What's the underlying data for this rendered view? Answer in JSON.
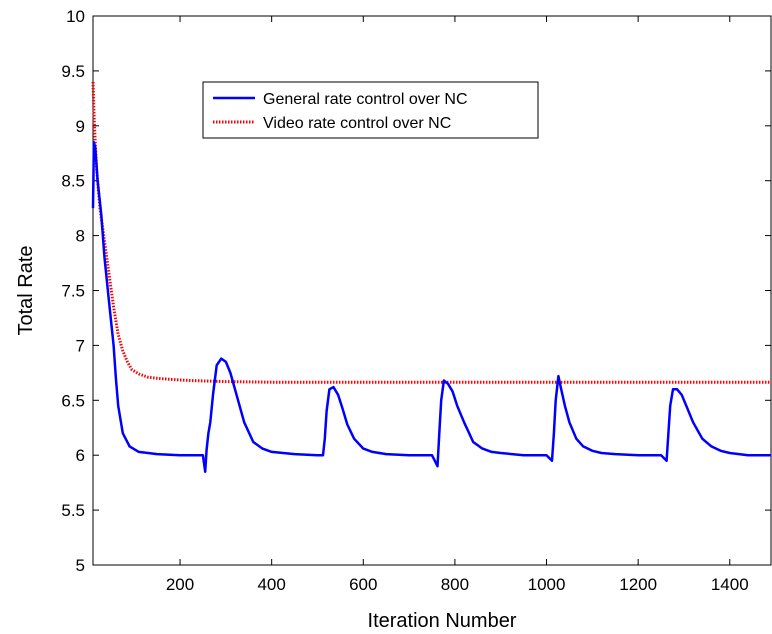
{
  "chart_data": {
    "type": "line",
    "xlabel": "Iteration Number",
    "ylabel": "Total Rate",
    "xlim": [
      10,
      1490
    ],
    "ylim": [
      5,
      10
    ],
    "xticks": [
      200,
      400,
      600,
      800,
      1000,
      1200,
      1400
    ],
    "yticks": [
      5,
      5.5,
      6,
      6.5,
      7,
      7.5,
      8,
      8.5,
      9,
      9.5,
      10
    ],
    "ytick_labels": [
      "5",
      "5.5",
      "6",
      "6.5",
      "7",
      "7.5",
      "8",
      "8.5",
      "9",
      "9.5",
      "10"
    ],
    "grid": false,
    "legend_position": "upper-center",
    "series": [
      {
        "name": "General rate control over NC",
        "color": "#0000ff",
        "style": "solid",
        "x": [
          10,
          12,
          15,
          20,
          28,
          35,
          45,
          55,
          60,
          65,
          75,
          90,
          110,
          130,
          150,
          200,
          250,
          255,
          258,
          262,
          266,
          272,
          280,
          290,
          300,
          310,
          320,
          330,
          340,
          360,
          380,
          400,
          450,
          500,
          512,
          516,
          520,
          526,
          535,
          545,
          555,
          565,
          580,
          600,
          620,
          650,
          700,
          750,
          762,
          766,
          770,
          776,
          785,
          795,
          805,
          820,
          840,
          860,
          880,
          900,
          950,
          1000,
          1012,
          1016,
          1020,
          1026,
          1032,
          1040,
          1050,
          1065,
          1080,
          1100,
          1120,
          1150,
          1200,
          1250,
          1262,
          1266,
          1270,
          1276,
          1285,
          1295,
          1305,
          1320,
          1340,
          1360,
          1380,
          1400,
          1440,
          1490
        ],
        "y": [
          8.25,
          8.85,
          8.8,
          8.5,
          8.2,
          7.8,
          7.4,
          7.0,
          6.7,
          6.45,
          6.2,
          6.08,
          6.03,
          6.02,
          6.01,
          6.0,
          6.0,
          5.85,
          6.05,
          6.2,
          6.3,
          6.55,
          6.82,
          6.88,
          6.85,
          6.75,
          6.6,
          6.45,
          6.3,
          6.12,
          6.06,
          6.03,
          6.01,
          6.0,
          6.0,
          6.15,
          6.4,
          6.6,
          6.62,
          6.55,
          6.42,
          6.28,
          6.15,
          6.06,
          6.03,
          6.01,
          6.0,
          6.0,
          5.9,
          6.2,
          6.5,
          6.68,
          6.65,
          6.58,
          6.45,
          6.3,
          6.12,
          6.06,
          6.03,
          6.02,
          6.0,
          6.0,
          5.95,
          6.2,
          6.5,
          6.72,
          6.6,
          6.45,
          6.3,
          6.15,
          6.08,
          6.04,
          6.02,
          6.01,
          6.0,
          6.0,
          5.95,
          6.2,
          6.45,
          6.6,
          6.6,
          6.55,
          6.45,
          6.3,
          6.15,
          6.08,
          6.04,
          6.02,
          6.0,
          6.0
        ]
      },
      {
        "name": "Video rate control over NC",
        "color": "#ff0000",
        "style": "dotted",
        "x": [
          10,
          13,
          18,
          25,
          35,
          45,
          55,
          65,
          75,
          85,
          95,
          110,
          130,
          150,
          180,
          220,
          300,
          400,
          600,
          800,
          1000,
          1200,
          1400,
          1490
        ],
        "y": [
          9.4,
          9.0,
          8.6,
          8.25,
          7.95,
          7.65,
          7.35,
          7.1,
          6.95,
          6.85,
          6.78,
          6.74,
          6.71,
          6.7,
          6.69,
          6.68,
          6.67,
          6.665,
          6.665,
          6.665,
          6.665,
          6.665,
          6.665,
          6.665
        ]
      }
    ]
  }
}
